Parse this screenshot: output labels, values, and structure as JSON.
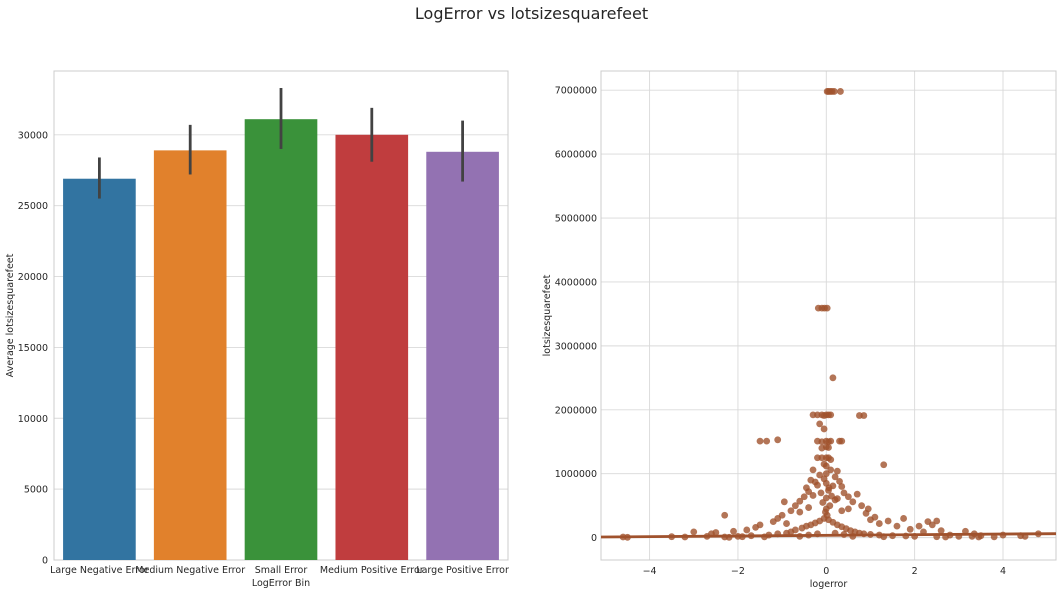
{
  "suptitle": "LogError vs lotsizesquarefeet",
  "chart_data": [
    {
      "type": "bar",
      "xlabel": "LogError Bin",
      "ylabel": "Average lotsizesquarefeet",
      "ylim": [
        0,
        34500
      ],
      "yticks": [
        0,
        5000,
        10000,
        15000,
        20000,
        25000,
        30000
      ],
      "grid": true,
      "categories": [
        "Large Negative Error",
        "Medium Negative Error",
        "Small Error",
        "Medium Positive Error",
        "Large Positive Error"
      ],
      "values": [
        26900,
        28900,
        31100,
        30000,
        28800
      ],
      "error_low": [
        25500,
        27200,
        29000,
        28100,
        26700
      ],
      "error_high": [
        28400,
        30700,
        33300,
        31900,
        31000
      ],
      "colors": [
        "#3274a1",
        "#e1812c",
        "#3a923a",
        "#c03d3e",
        "#9372b2"
      ],
      "error_color": "#424242"
    },
    {
      "type": "scatter",
      "xlabel": "logerror",
      "ylabel": "lotsizesquarefeet",
      "xlim": [
        -5.1,
        5.2
      ],
      "ylim": [
        -350000,
        7300000
      ],
      "xticks": [
        -4,
        -2,
        0,
        2,
        4
      ],
      "yticks": [
        0,
        1000000,
        2000000,
        3000000,
        4000000,
        5000000,
        6000000,
        7000000
      ],
      "grid": true,
      "color": "#a0522d",
      "regression_line": [
        [
          -5.1,
          10000
        ],
        [
          5.2,
          62000
        ]
      ],
      "points": [
        [
          0.02,
          6980000
        ],
        [
          0.05,
          6980000
        ],
        [
          0.09,
          6980000
        ],
        [
          0.13,
          6980000
        ],
        [
          0.18,
          6980000
        ],
        [
          0.32,
          6980000
        ],
        [
          -0.18,
          3590000
        ],
        [
          -0.1,
          3590000
        ],
        [
          -0.04,
          3590000
        ],
        [
          0.02,
          3590000
        ],
        [
          0.15,
          2500000
        ],
        [
          -0.3,
          1920000
        ],
        [
          -0.2,
          1920000
        ],
        [
          -0.1,
          1920000
        ],
        [
          -0.05,
          1910000
        ],
        [
          0.0,
          1920000
        ],
        [
          0.05,
          1920000
        ],
        [
          0.1,
          1920000
        ],
        [
          0.75,
          1910000
        ],
        [
          0.85,
          1910000
        ],
        [
          -0.15,
          1780000
        ],
        [
          -0.05,
          1700000
        ],
        [
          -1.5,
          1510000
        ],
        [
          -1.35,
          1510000
        ],
        [
          -1.1,
          1530000
        ],
        [
          -0.2,
          1510000
        ],
        [
          -0.1,
          1500000
        ],
        [
          0.0,
          1510000
        ],
        [
          0.05,
          1500000
        ],
        [
          0.1,
          1510000
        ],
        [
          0.3,
          1510000
        ],
        [
          0.35,
          1510000
        ],
        [
          -0.1,
          1400000
        ],
        [
          0.0,
          1420000
        ],
        [
          0.05,
          1410000
        ],
        [
          -0.2,
          1250000
        ],
        [
          -0.1,
          1250000
        ],
        [
          0.0,
          1250000
        ],
        [
          0.05,
          1250000
        ],
        [
          0.1,
          1220000
        ],
        [
          1.3,
          1140000
        ],
        [
          -0.05,
          1150000
        ],
        [
          0.0,
          1120000
        ],
        [
          -0.3,
          1060000
        ],
        [
          0.1,
          1060000
        ],
        [
          0.25,
          1040000
        ],
        [
          -0.15,
          980000
        ],
        [
          0.0,
          1000000
        ],
        [
          0.2,
          950000
        ],
        [
          -0.35,
          900000
        ],
        [
          -0.25,
          870000
        ],
        [
          0.3,
          880000
        ],
        [
          -0.2,
          820000
        ],
        [
          0.15,
          810000
        ],
        [
          0.35,
          800000
        ],
        [
          -0.45,
          780000
        ],
        [
          -0.4,
          720000
        ],
        [
          0.4,
          700000
        ],
        [
          0.05,
          740000
        ],
        [
          -0.5,
          640000
        ],
        [
          0.5,
          640000
        ],
        [
          -0.3,
          660000
        ],
        [
          0.25,
          610000
        ],
        [
          0.7,
          680000
        ],
        [
          -0.6,
          570000
        ],
        [
          -0.95,
          560000
        ],
        [
          0.6,
          560000
        ],
        [
          0.2,
          590000
        ],
        [
          -0.7,
          500000
        ],
        [
          0.8,
          500000
        ],
        [
          -0.4,
          470000
        ],
        [
          0.5,
          450000
        ],
        [
          0.95,
          450000
        ],
        [
          -0.8,
          420000
        ],
        [
          0.9,
          380000
        ],
        [
          -0.6,
          400000
        ],
        [
          0.35,
          420000
        ],
        [
          -1.0,
          350000
        ],
        [
          -1.1,
          300000
        ],
        [
          1.1,
          320000
        ],
        [
          1.0,
          280000
        ],
        [
          -1.2,
          250000
        ],
        [
          1.2,
          220000
        ],
        [
          -0.9,
          220000
        ],
        [
          1.4,
          260000
        ],
        [
          2.3,
          250000
        ],
        [
          2.5,
          260000
        ],
        [
          -2.3,
          350000
        ],
        [
          -1.5,
          200000
        ],
        [
          1.6,
          180000
        ],
        [
          -1.6,
          160000
        ],
        [
          1.75,
          300000
        ],
        [
          2.1,
          180000
        ],
        [
          2.4,
          200000
        ],
        [
          -1.8,
          120000
        ],
        [
          1.9,
          130000
        ],
        [
          -2.1,
          100000
        ],
        [
          2.2,
          90000
        ],
        [
          2.6,
          110000
        ],
        [
          3.15,
          100000
        ],
        [
          3.35,
          60000
        ],
        [
          -2.5,
          80000
        ],
        [
          -2.6,
          60000
        ],
        [
          -3.0,
          90000
        ],
        [
          -2.7,
          20000
        ],
        [
          2.8,
          40000
        ],
        [
          3.0,
          20000
        ],
        [
          3.5,
          30000
        ],
        [
          -4.6,
          10000
        ],
        [
          -4.5,
          5000
        ],
        [
          -2.3,
          10000
        ],
        [
          -2.2,
          5000
        ],
        [
          -2.0,
          20000
        ],
        [
          -1.7,
          30000
        ],
        [
          -1.3,
          40000
        ],
        [
          -1.1,
          60000
        ],
        [
          -0.9,
          70000
        ],
        [
          -0.8,
          90000
        ],
        [
          -0.7,
          120000
        ],
        [
          -0.55,
          150000
        ],
        [
          -0.45,
          180000
        ],
        [
          -0.35,
          200000
        ],
        [
          -0.25,
          230000
        ],
        [
          -0.15,
          260000
        ],
        [
          -0.05,
          300000
        ],
        [
          0.05,
          280000
        ],
        [
          0.15,
          240000
        ],
        [
          0.25,
          200000
        ],
        [
          0.35,
          170000
        ],
        [
          0.45,
          140000
        ],
        [
          0.55,
          110000
        ],
        [
          0.65,
          90000
        ],
        [
          0.75,
          70000
        ],
        [
          0.85,
          60000
        ],
        [
          1.0,
          50000
        ],
        [
          1.2,
          40000
        ],
        [
          1.5,
          30000
        ],
        [
          1.8,
          25000
        ],
        [
          2.0,
          20000
        ],
        [
          2.5,
          15000
        ],
        [
          3.3,
          20000
        ],
        [
          3.45,
          10000
        ],
        [
          4.0,
          40000
        ],
        [
          4.4,
          30000
        ],
        [
          4.5,
          20000
        ],
        [
          4.8,
          60000
        ],
        [
          -0.02,
          400000
        ],
        [
          0.02,
          350000
        ],
        [
          0.0,
          450000
        ],
        [
          -0.08,
          550000
        ],
        [
          0.08,
          500000
        ],
        [
          0.0,
          620000
        ],
        [
          -0.12,
          700000
        ],
        [
          0.12,
          650000
        ],
        [
          0.0,
          850000
        ],
        [
          -0.05,
          920000
        ],
        [
          0.06,
          780000
        ],
        [
          -3.5,
          15000
        ],
        [
          -3.2,
          10000
        ],
        [
          -1.9,
          15000
        ],
        [
          -1.4,
          12000
        ],
        [
          -0.6,
          20000
        ],
        [
          0.6,
          20000
        ],
        [
          1.3,
          15000
        ],
        [
          2.7,
          10000
        ],
        [
          3.8,
          12000
        ],
        [
          -0.2,
          60000
        ],
        [
          0.2,
          70000
        ],
        [
          -0.4,
          40000
        ],
        [
          0.4,
          50000
        ]
      ]
    }
  ]
}
